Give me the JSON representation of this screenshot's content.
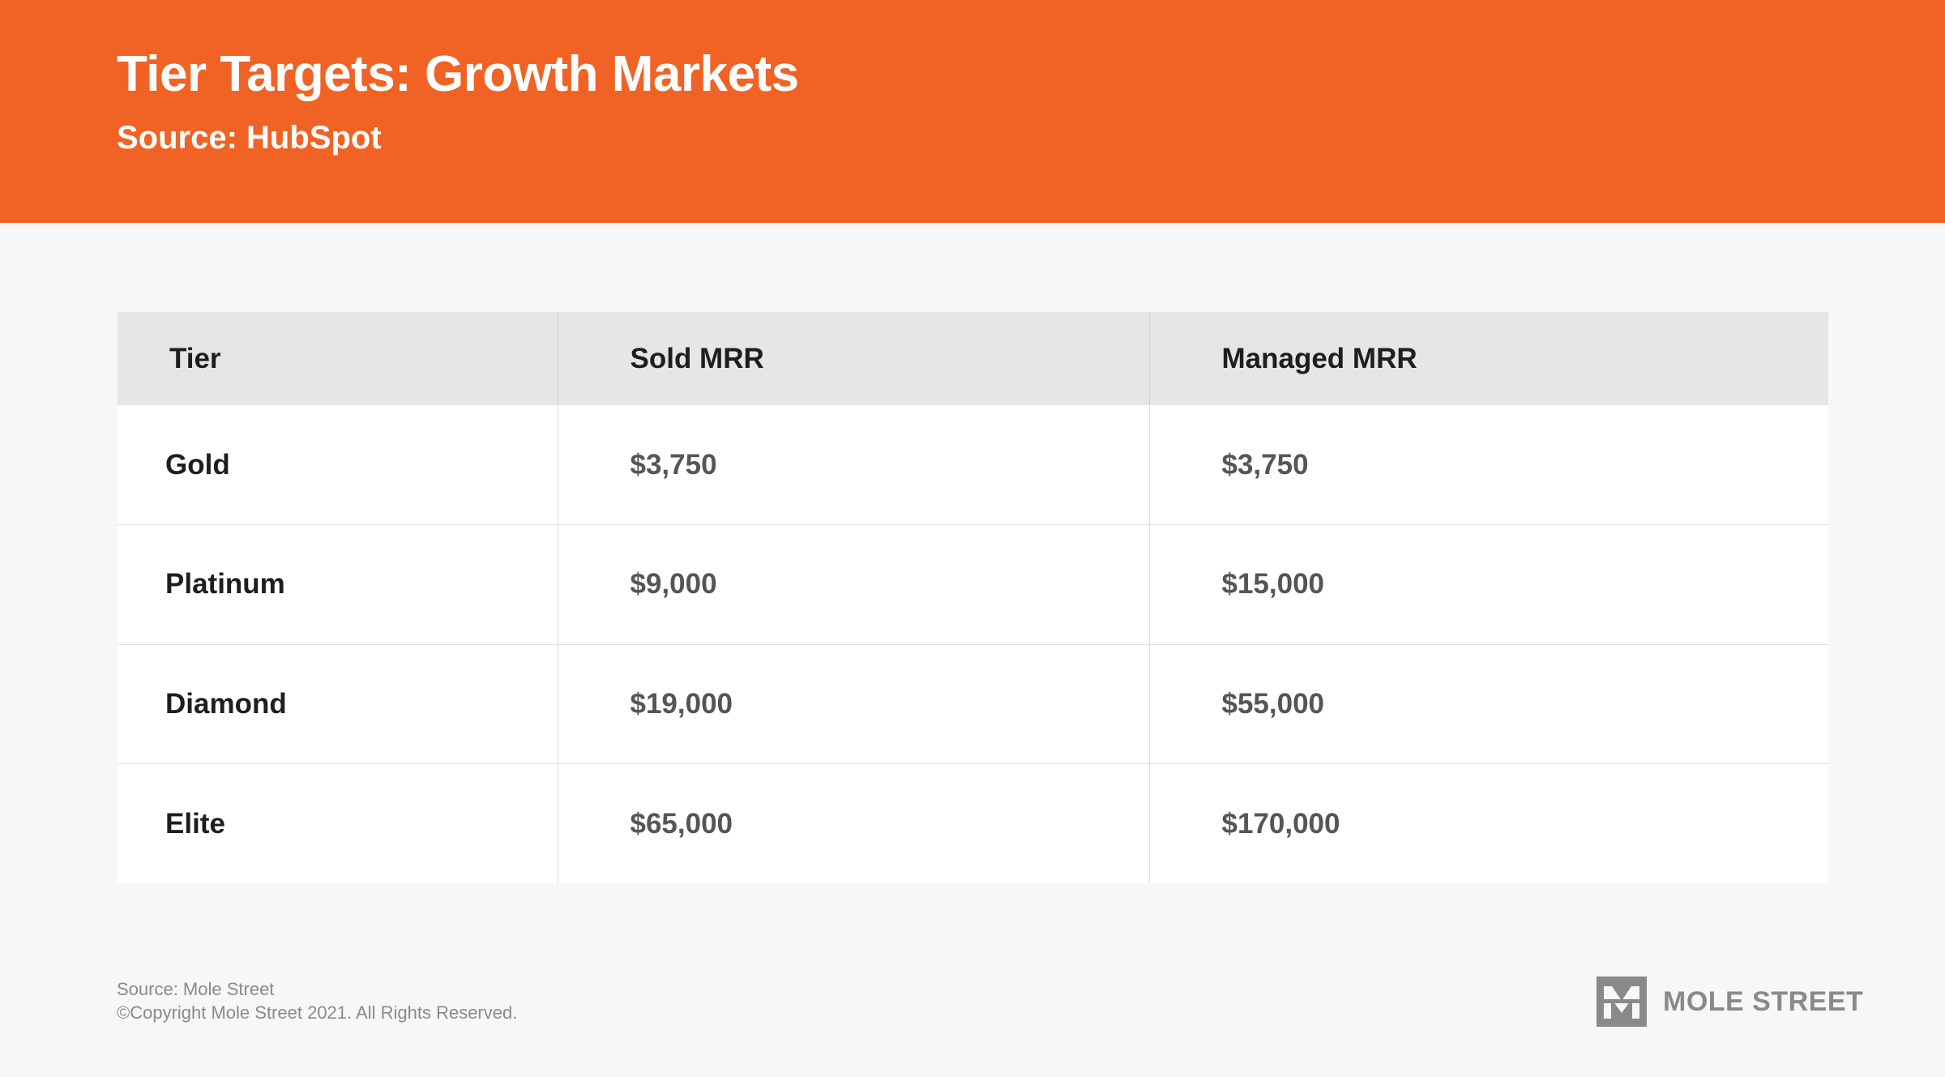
{
  "header": {
    "title": "Tier Targets: Growth Markets",
    "subtitle": "Source: HubSpot",
    "background_color": "#f06325"
  },
  "table": {
    "columns": [
      "Tier",
      "Sold MRR",
      "Managed MRR"
    ],
    "rows": [
      {
        "tier": "Gold",
        "sold_mrr": "$3,750",
        "managed_mrr": "$3,750"
      },
      {
        "tier": "Platinum",
        "sold_mrr": "$9,000",
        "managed_mrr": "$15,000"
      },
      {
        "tier": "Diamond",
        "sold_mrr": "$19,000",
        "managed_mrr": "$55,000"
      },
      {
        "tier": "Elite",
        "sold_mrr": "$65,000",
        "managed_mrr": "$170,000"
      }
    ]
  },
  "footer": {
    "source": "Source: Mole Street",
    "copyright": "©Copyright Mole Street 2021. All Rights Reserved.",
    "logo_text": "MOLE STREET",
    "logo_icon": "mole-street-logo-icon"
  }
}
